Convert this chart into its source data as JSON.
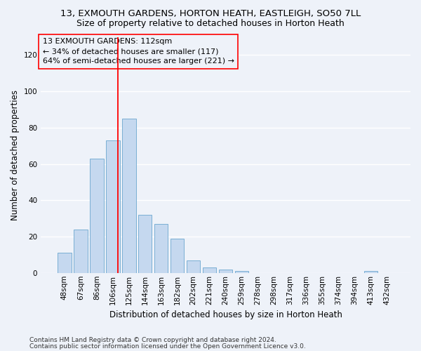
{
  "title1": "13, EXMOUTH GARDENS, HORTON HEATH, EASTLEIGH, SO50 7LL",
  "title2": "Size of property relative to detached houses in Horton Heath",
  "xlabel": "Distribution of detached houses by size in Horton Heath",
  "ylabel": "Number of detached properties",
  "bar_labels": [
    "48sqm",
    "67sqm",
    "86sqm",
    "106sqm",
    "125sqm",
    "144sqm",
    "163sqm",
    "182sqm",
    "202sqm",
    "221sqm",
    "240sqm",
    "259sqm",
    "278sqm",
    "298sqm",
    "317sqm",
    "336sqm",
    "355sqm",
    "374sqm",
    "394sqm",
    "413sqm",
    "432sqm"
  ],
  "bar_values": [
    11,
    24,
    63,
    73,
    85,
    32,
    27,
    19,
    7,
    3,
    2,
    1,
    0,
    0,
    0,
    0,
    0,
    0,
    0,
    1,
    0
  ],
  "bar_color": "#c5d8ef",
  "bar_edge_color": "#7aafd4",
  "vline_color": "red",
  "ylim": [
    0,
    130
  ],
  "yticks": [
    0,
    20,
    40,
    60,
    80,
    100,
    120
  ],
  "annotation_box_text1": "13 EXMOUTH GARDENS: 112sqm",
  "annotation_box_text2": "← 34% of detached houses are smaller (117)",
  "annotation_box_text3": "64% of semi-detached houses are larger (221) →",
  "footnote1": "Contains HM Land Registry data © Crown copyright and database right 2024.",
  "footnote2": "Contains public sector information licensed under the Open Government Licence v3.0.",
  "bg_color": "#eef2f9",
  "grid_color": "#ffffff",
  "title1_fontsize": 9.5,
  "title2_fontsize": 9,
  "annot_fontsize": 8,
  "tick_fontsize": 7.5,
  "xlabel_fontsize": 8.5,
  "ylabel_fontsize": 8.5,
  "footnote_fontsize": 6.5
}
